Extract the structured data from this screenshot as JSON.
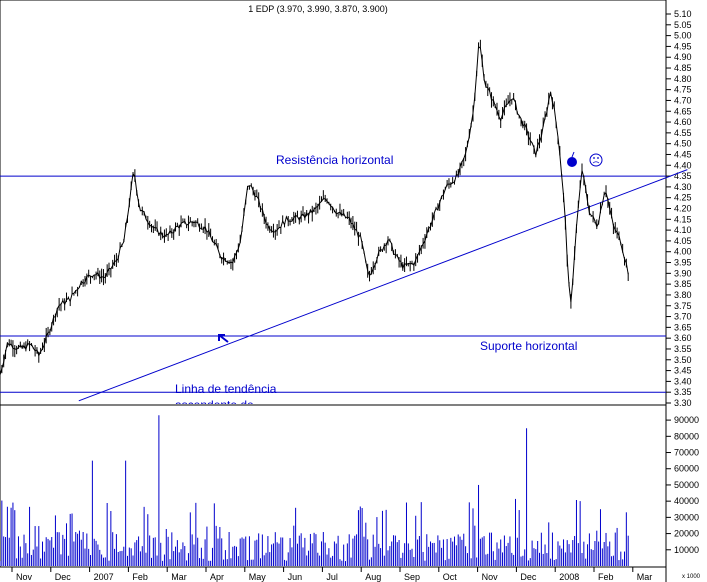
{
  "chart_data": {
    "type": "ohlc-with-volume",
    "title": "1 EDP (3.970, 3.990, 3.870, 3.900)",
    "ohlc_last": {
      "open": 3.97,
      "high": 3.99,
      "low": 3.87,
      "close": 3.9
    },
    "price_axis": {
      "ylim": [
        3.3,
        5.1
      ],
      "ticks": [
        "5.10",
        "5.05",
        "5.00",
        "4.95",
        "4.90",
        "4.85",
        "4.80",
        "4.75",
        "4.70",
        "4.65",
        "4.60",
        "4.55",
        "4.50",
        "4.45",
        "4.40",
        "4.35",
        "4.30",
        "4.25",
        "4.20",
        "4.15",
        "4.10",
        "4.05",
        "4.00",
        "3.95",
        "3.90",
        "3.85",
        "3.80",
        "3.75",
        "3.70",
        "3.65",
        "3.60",
        "3.55",
        "3.50",
        "3.45",
        "3.40",
        "3.35",
        "3.30"
      ]
    },
    "volume_axis": {
      "ylim": [
        0,
        95000
      ],
      "ticks": [
        "90000",
        "80000",
        "70000",
        "60000",
        "50000",
        "40000",
        "30000",
        "20000",
        "10000"
      ],
      "unit_label": "x 1000"
    },
    "x_axis": {
      "months": [
        "Nov",
        "Dec",
        "2007",
        "Feb",
        "Mar",
        "Apr",
        "May",
        "Jun",
        "Jul",
        "Aug",
        "Sep",
        "Oct",
        "Nov",
        "Dec",
        "2008",
        "Feb",
        "Mar"
      ],
      "month_index": [
        0,
        1,
        2,
        3,
        4,
        5,
        6,
        7,
        8,
        9,
        10,
        11,
        12,
        13,
        14,
        15,
        16
      ]
    },
    "price_series_monthly": {
      "name": "EDP",
      "points": [
        [
          0.0,
          3.43
        ],
        [
          0.2,
          3.58
        ],
        [
          0.5,
          3.55
        ],
        [
          0.8,
          3.57
        ],
        [
          1.0,
          3.52
        ],
        [
          1.2,
          3.6
        ],
        [
          1.5,
          3.75
        ],
        [
          1.8,
          3.78
        ],
        [
          2.1,
          3.86
        ],
        [
          2.4,
          3.9
        ],
        [
          2.7,
          3.88
        ],
        [
          3.0,
          3.96
        ],
        [
          3.2,
          4.05
        ],
        [
          3.45,
          4.38
        ],
        [
          3.6,
          4.2
        ],
        [
          3.8,
          4.15
        ],
        [
          4.0,
          4.1
        ],
        [
          4.3,
          4.07
        ],
        [
          4.6,
          4.12
        ],
        [
          5.0,
          4.14
        ],
        [
          5.3,
          4.11
        ],
        [
          5.7,
          3.98
        ],
        [
          6.0,
          3.95
        ],
        [
          6.2,
          4.05
        ],
        [
          6.4,
          4.32
        ],
        [
          6.6,
          4.26
        ],
        [
          6.9,
          4.12
        ],
        [
          7.1,
          4.1
        ],
        [
          7.4,
          4.15
        ],
        [
          7.8,
          4.16
        ],
        [
          8.1,
          4.19
        ],
        [
          8.4,
          4.25
        ],
        [
          8.7,
          4.18
        ],
        [
          9.0,
          4.15
        ],
        [
          9.3,
          4.06
        ],
        [
          9.5,
          3.88
        ],
        [
          9.7,
          3.97
        ],
        [
          10.0,
          4.06
        ],
        [
          10.2,
          3.98
        ],
        [
          10.4,
          3.93
        ],
        [
          10.7,
          3.95
        ],
        [
          10.9,
          4.04
        ],
        [
          11.2,
          4.17
        ],
        [
          11.5,
          4.3
        ],
        [
          11.8,
          4.35
        ],
        [
          12.0,
          4.45
        ],
        [
          12.2,
          4.65
        ],
        [
          12.35,
          4.98
        ],
        [
          12.5,
          4.78
        ],
        [
          12.7,
          4.7
        ],
        [
          12.9,
          4.62
        ],
        [
          13.2,
          4.72
        ],
        [
          13.4,
          4.62
        ],
        [
          13.6,
          4.55
        ],
        [
          13.8,
          4.45
        ],
        [
          14.0,
          4.57
        ],
        [
          14.2,
          4.75
        ],
        [
          14.4,
          4.52
        ],
        [
          14.55,
          4.2
        ],
        [
          14.7,
          3.72
        ],
        [
          14.85,
          4.1
        ],
        [
          15.0,
          4.38
        ],
        [
          15.2,
          4.18
        ],
        [
          15.4,
          4.12
        ],
        [
          15.6,
          4.3
        ],
        [
          15.8,
          4.12
        ],
        [
          16.0,
          4.05
        ],
        [
          16.2,
          3.9
        ]
      ]
    },
    "annotations": {
      "resistance_label": "Resistência horizontal",
      "resistance_level": 4.35,
      "support_label": "Suporte horizontal",
      "support_level": 3.61,
      "lower_level": 3.35,
      "trend_label_line1": "Linha de tendência",
      "trend_label_line2": "ascendente de",
      "trendline": {
        "x0": 1.0,
        "y0": 3.31,
        "x1": 17.2,
        "y1": 4.38
      }
    },
    "colors": {
      "series": "#000000",
      "annotation": "#0000cc",
      "volume": "#0000cc",
      "background": "#ffffff",
      "marker": "#0000cc"
    }
  }
}
